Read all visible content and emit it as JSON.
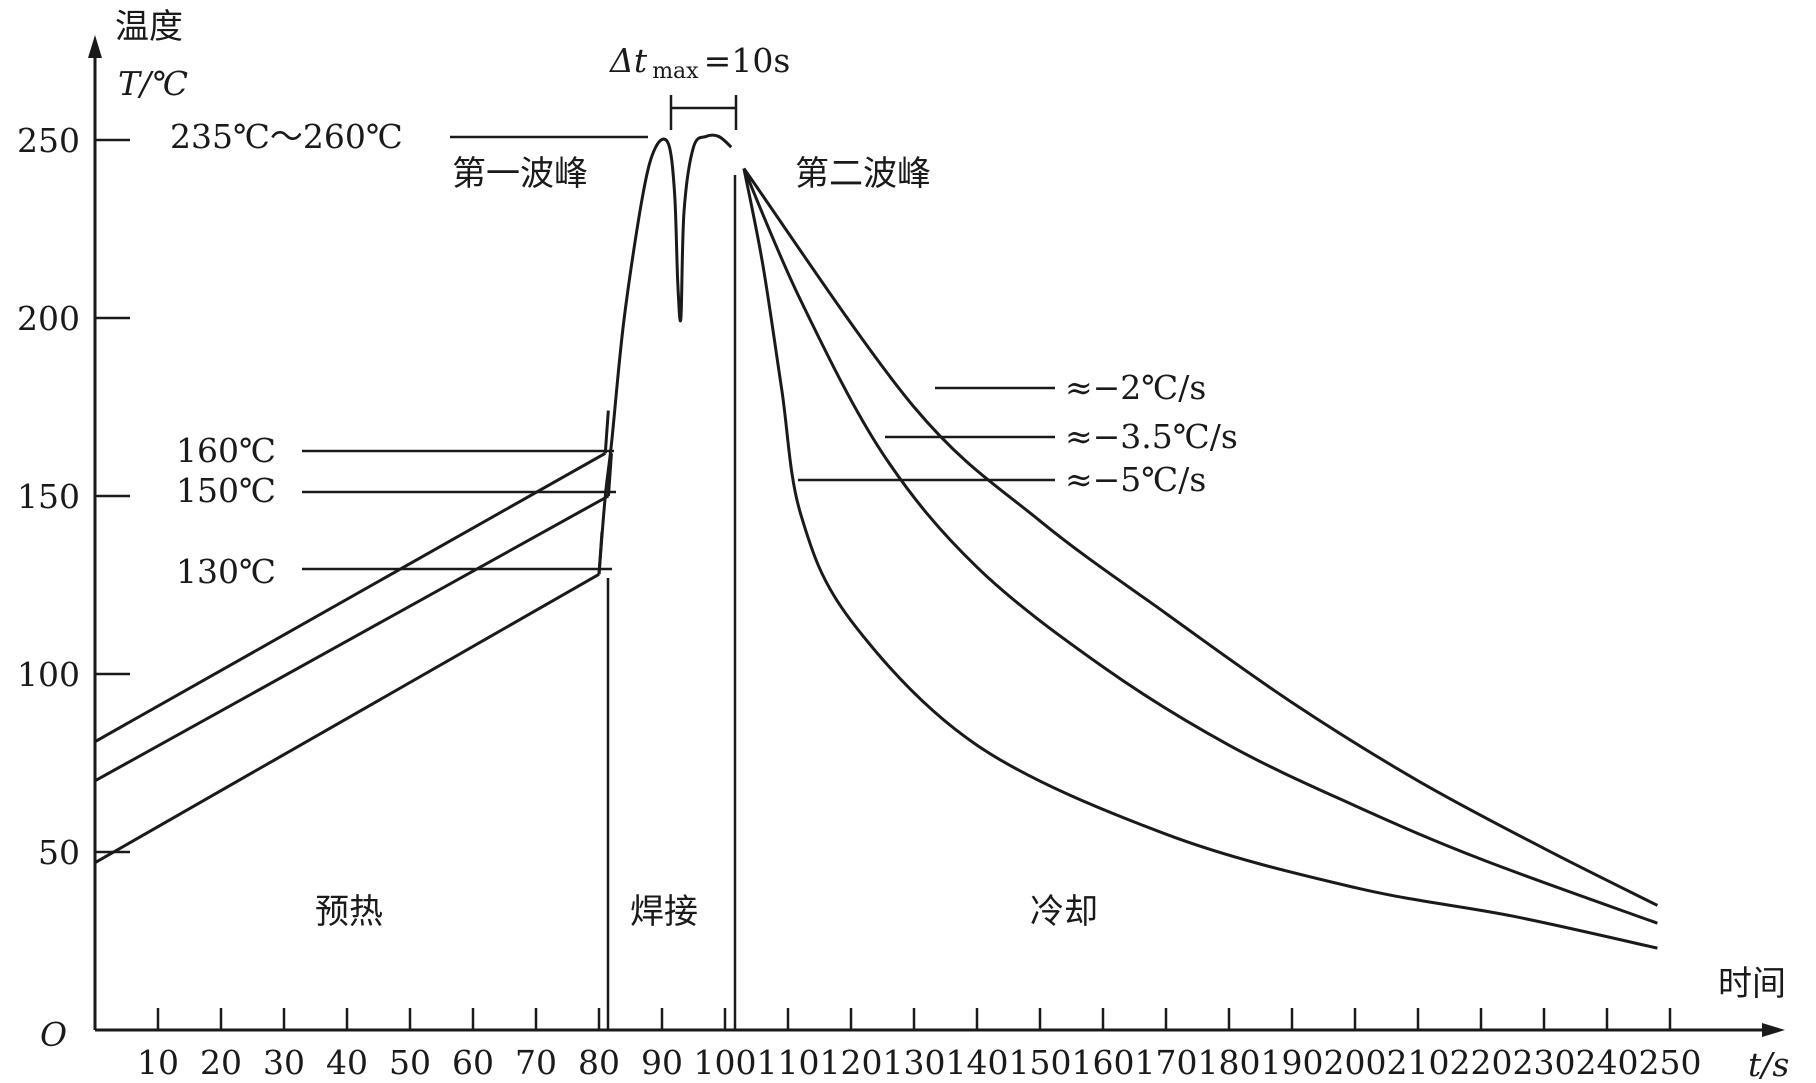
{
  "chart_data": {
    "type": "line",
    "title": "",
    "ylabel_top": "温度",
    "ylabel": "T/℃",
    "xlabel_top": "时间",
    "xlabel": "t/s",
    "origin_label": "O",
    "x_ticks": [
      "10",
      "20",
      "30",
      "40",
      "50",
      "60",
      "70",
      "80",
      "90",
      "100",
      "110",
      "120",
      "130",
      "140",
      "150",
      "160",
      "170",
      "180",
      "190",
      "200",
      "210",
      "220",
      "230",
      "240",
      "250"
    ],
    "y_ticks": [
      "50",
      "100",
      "150",
      "200",
      "250"
    ],
    "xlim": [
      0,
      255
    ],
    "ylim": [
      0,
      270
    ],
    "grid": false,
    "preheat_series": [
      {
        "values": [
          [
            0,
            81
          ],
          [
            81,
            162
          ]
        ]
      },
      {
        "values": [
          [
            0,
            70
          ],
          [
            81.5,
            150
          ]
        ]
      },
      {
        "values": [
          [
            0,
            47
          ],
          [
            80,
            128
          ]
        ]
      }
    ],
    "wave_series": {
      "values": [
        [
          80,
          128
        ],
        [
          81,
          150
        ],
        [
          82,
          165
        ],
        [
          84,
          200
        ],
        [
          87,
          235
        ],
        [
          89,
          248
        ],
        [
          91,
          249
        ],
        [
          92,
          235
        ],
        [
          92.5,
          210
        ],
        [
          93,
          200
        ],
        [
          93.5,
          230
        ],
        [
          95,
          248
        ],
        [
          97,
          251
        ],
        [
          99,
          251
        ],
        [
          101,
          248
        ]
      ]
    },
    "cooling_series": [
      {
        "name": "≈−2℃/s",
        "values": [
          [
            103,
            242
          ],
          [
            130,
            175
          ],
          [
            150,
            143
          ],
          [
            170,
            117
          ],
          [
            190,
            92
          ],
          [
            210,
            70
          ],
          [
            230,
            51
          ],
          [
            248,
            35
          ]
        ]
      },
      {
        "name": "≈−3.5℃/s",
        "values": [
          [
            103,
            242
          ],
          [
            112,
            205
          ],
          [
            125,
            162
          ],
          [
            140,
            130
          ],
          [
            160,
            102
          ],
          [
            180,
            80
          ],
          [
            200,
            63
          ],
          [
            220,
            48
          ],
          [
            248,
            30
          ]
        ]
      },
      {
        "name": "≈−5℃/s",
        "values": [
          [
            103,
            242
          ],
          [
            106,
            215
          ],
          [
            109,
            180
          ],
          [
            112,
            145
          ],
          [
            120,
            115
          ],
          [
            140,
            80
          ],
          [
            170,
            55
          ],
          [
            200,
            40
          ],
          [
            225,
            32
          ],
          [
            248,
            23
          ]
        ]
      }
    ],
    "annotations": {
      "peak_range": "235℃～260℃",
      "delta_t": "Δt",
      "delta_t_sub": "max",
      "delta_t_val": "=10s",
      "first_peak": "第一波峰",
      "second_peak": "第二波峰",
      "t160": "160℃",
      "t150": "150℃",
      "t130": "130℃",
      "rate1": "≈−2℃/s",
      "rate2": "≈−3.5℃/s",
      "rate3": "≈−5℃/s",
      "zone_preheat": "预热",
      "zone_weld": "焊接",
      "zone_cool": "冷却"
    }
  }
}
